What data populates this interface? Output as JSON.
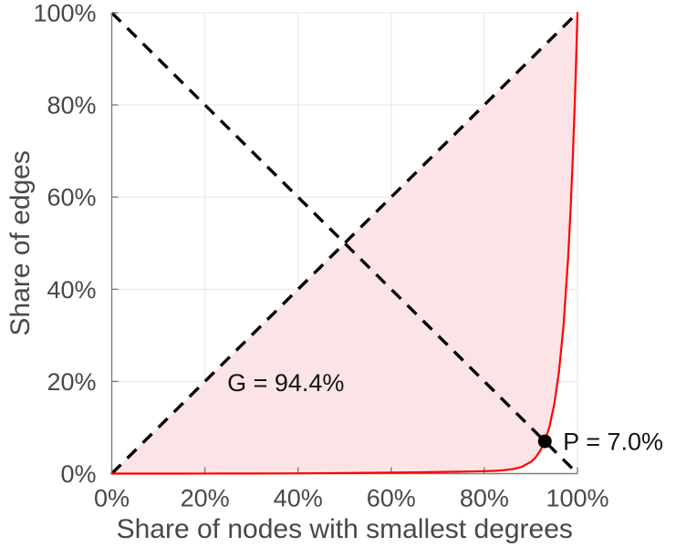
{
  "chart_data": {
    "type": "line",
    "title": "",
    "xlabel": "Share of nodes with smallest degrees",
    "ylabel": "Share of edges",
    "xlim": [
      0,
      100
    ],
    "ylim": [
      0,
      100
    ],
    "grid": true,
    "legend": "none",
    "tick_values": [
      0,
      20,
      40,
      60,
      80,
      100
    ],
    "x_tick_labels": [
      "0%",
      "20%",
      "40%",
      "60%",
      "80%",
      "100%"
    ],
    "y_tick_labels": [
      "0%",
      "20%",
      "40%",
      "60%",
      "80%",
      "100%"
    ],
    "gini_coefficient_pct": 94.4,
    "pareto_point_pct": 7.0,
    "series": [
      {
        "name": "lorenz-curve",
        "style": "solid",
        "color": "#ff0000",
        "width": 2.2,
        "points": [
          [
            0,
            0
          ],
          [
            5,
            0
          ],
          [
            10,
            0
          ],
          [
            15,
            0
          ],
          [
            20,
            0.01
          ],
          [
            25,
            0.02
          ],
          [
            30,
            0.03
          ],
          [
            35,
            0.04
          ],
          [
            40,
            0.06
          ],
          [
            45,
            0.09
          ],
          [
            50,
            0.13
          ],
          [
            55,
            0.17
          ],
          [
            60,
            0.22
          ],
          [
            65,
            0.27
          ],
          [
            70,
            0.34
          ],
          [
            75,
            0.42
          ],
          [
            78,
            0.48
          ],
          [
            80,
            0.53
          ],
          [
            82,
            0.6
          ],
          [
            84,
            0.72
          ],
          [
            86,
            0.96
          ],
          [
            88,
            1.45
          ],
          [
            90,
            2.54
          ],
          [
            91,
            3.5
          ],
          [
            92,
            4.94
          ],
          [
            93,
            7.09
          ],
          [
            94,
            10.25
          ],
          [
            95,
            14.95
          ],
          [
            96,
            21.87
          ],
          [
            97,
            32.03
          ],
          [
            98,
            46.89
          ],
          [
            98.5,
            56.71
          ],
          [
            99,
            68.55
          ],
          [
            99.4,
            79.74
          ],
          [
            99.7,
            89.31
          ],
          [
            99.9,
            96.3
          ],
          [
            100,
            100
          ]
        ]
      },
      {
        "name": "equality-diagonal",
        "style": "dashed",
        "color": "#000000",
        "width": 3.4,
        "points": [
          [
            0,
            0
          ],
          [
            100,
            100
          ]
        ]
      },
      {
        "name": "anti-diagonal",
        "style": "dashed",
        "color": "#000000",
        "width": 3.4,
        "points": [
          [
            0,
            100
          ],
          [
            100,
            0
          ]
        ]
      }
    ],
    "fill_between": {
      "upper": "equality-diagonal",
      "lower": "lorenz-curve",
      "color": "#fbe3e6"
    },
    "marker": {
      "x": 93,
      "y": 7,
      "radius": 7.5,
      "color": "#000000"
    },
    "annotations": [
      {
        "id": "gini-annotation",
        "text": "G = 94.4%",
        "x": 24.8,
        "y": 19.8,
        "anchor": "start",
        "color": "#141414"
      },
      {
        "id": "pareto-annotation",
        "text": "P = 7.0%",
        "x": 96.9,
        "y": 7.0,
        "anchor": "start",
        "color": "#141414"
      }
    ],
    "colors": {
      "grid": "#eaeaea",
      "spine": "#7d7d7d",
      "tick_text": "#484848",
      "axis_label_text": "#484848",
      "background": "#ffffff"
    }
  }
}
